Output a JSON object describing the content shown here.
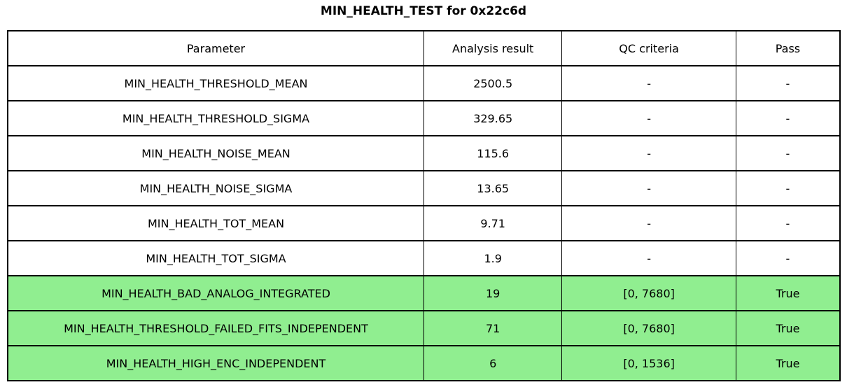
{
  "title": "MIN_HEALTH_TEST for 0x22c6d",
  "chart_data": {
    "type": "table",
    "title": "MIN_HEALTH_TEST for 0x22c6d",
    "columns": [
      "Parameter",
      "Analysis result",
      "QC criteria",
      "Pass"
    ],
    "rows": [
      {
        "parameter": "MIN_HEALTH_THRESHOLD_MEAN",
        "result": "2500.5",
        "qc": "-",
        "pass": "-",
        "highlight": false
      },
      {
        "parameter": "MIN_HEALTH_THRESHOLD_SIGMA",
        "result": "329.65",
        "qc": "-",
        "pass": "-",
        "highlight": false
      },
      {
        "parameter": "MIN_HEALTH_NOISE_MEAN",
        "result": "115.6",
        "qc": "-",
        "pass": "-",
        "highlight": false
      },
      {
        "parameter": "MIN_HEALTH_NOISE_SIGMA",
        "result": "13.65",
        "qc": "-",
        "pass": "-",
        "highlight": false
      },
      {
        "parameter": "MIN_HEALTH_TOT_MEAN",
        "result": "9.71",
        "qc": "-",
        "pass": "-",
        "highlight": false
      },
      {
        "parameter": "MIN_HEALTH_TOT_SIGMA",
        "result": "1.9",
        "qc": "-",
        "pass": "-",
        "highlight": false
      },
      {
        "parameter": "MIN_HEALTH_BAD_ANALOG_INTEGRATED",
        "result": "19",
        "qc": "[0, 7680]",
        "pass": "True",
        "highlight": true
      },
      {
        "parameter": "MIN_HEALTH_THRESHOLD_FAILED_FITS_INDEPENDENT",
        "result": "71",
        "qc": "[0, 7680]",
        "pass": "True",
        "highlight": true
      },
      {
        "parameter": "MIN_HEALTH_HIGH_ENC_INDEPENDENT",
        "result": "6",
        "qc": "[0, 1536]",
        "pass": "True",
        "highlight": true
      }
    ]
  },
  "colors": {
    "highlight_pass": "#90ee90",
    "border": "#000000",
    "background": "#ffffff",
    "text": "#000000"
  }
}
